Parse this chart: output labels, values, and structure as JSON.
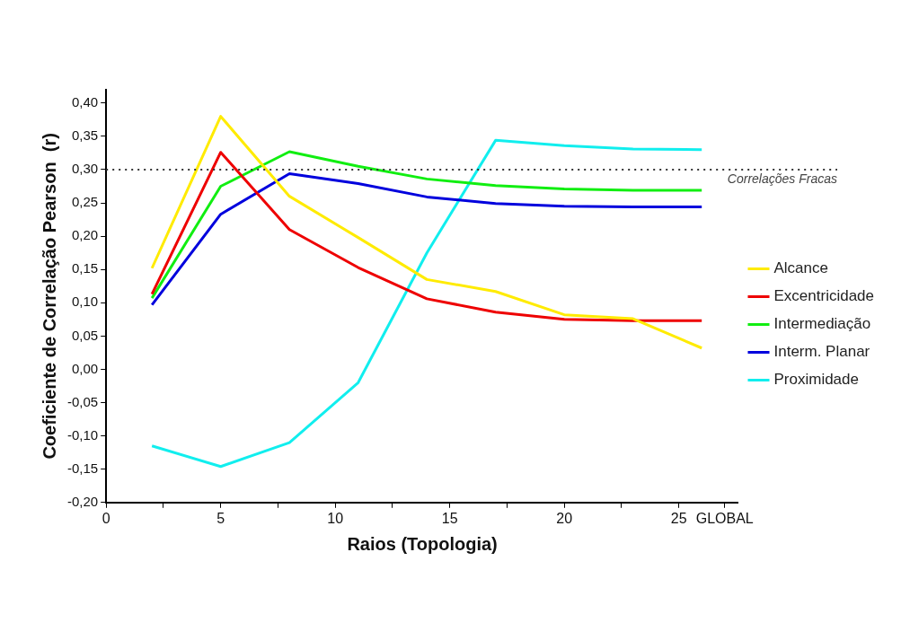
{
  "chart_data": {
    "type": "line",
    "xlabel": "Raios (Topologia)",
    "ylabel": "Coeficiente de Correlação Pearson  (r)",
    "xlim": [
      0,
      27.6
    ],
    "xticks": [
      0,
      {
        "value": 2.5,
        "label": null
      },
      5,
      {
        "value": 7.5,
        "label": null
      },
      10,
      {
        "value": 12.5,
        "label": null
      },
      15,
      {
        "value": 17.5,
        "label": null
      },
      20,
      {
        "value": 22.5,
        "label": null
      },
      25,
      {
        "value": 27,
        "label": "GLOBAL"
      }
    ],
    "ylim": [
      -0.2,
      0.42
    ],
    "yticks": [
      {
        "value": -0.2,
        "label": "-0,20"
      },
      {
        "value": -0.15,
        "label": "-0,15"
      },
      {
        "value": -0.1,
        "label": "-0,10"
      },
      {
        "value": -0.05,
        "label": "-0,05"
      },
      {
        "value": 0,
        "label": "0,00"
      },
      {
        "value": 0.05,
        "label": "0,05"
      },
      {
        "value": 0.1,
        "label": "0,10"
      },
      {
        "value": 0.15,
        "label": "0,15"
      },
      {
        "value": 0.2,
        "label": "0,20"
      },
      {
        "value": 0.25,
        "label": "0,25"
      },
      {
        "value": 0.3,
        "label": "0,30"
      },
      {
        "value": 0.35,
        "label": "0,35"
      },
      {
        "value": 0.4,
        "label": "0,40"
      }
    ],
    "x": [
      2,
      5,
      8,
      11,
      14,
      17,
      20,
      23,
      26
    ],
    "series": [
      {
        "name": "Alcance",
        "color": "#ffeb00",
        "values": [
          0.152,
          0.38,
          0.26,
          0.198,
          0.135,
          0.117,
          0.082,
          0.076,
          0.032
        ]
      },
      {
        "name": "Excentricidade",
        "color": "#ee0000",
        "values": [
          0.113,
          0.326,
          0.21,
          0.153,
          0.106,
          0.086,
          0.075,
          0.073,
          0.073
        ]
      },
      {
        "name": "Intermediação",
        "color": "#11ee11",
        "values": [
          0.107,
          0.275,
          0.327,
          0.305,
          0.286,
          0.276,
          0.271,
          0.269,
          0.269
        ]
      },
      {
        "name": "Interm. Planar",
        "color": "#0000dd",
        "values": [
          0.097,
          0.233,
          0.294,
          0.279,
          0.259,
          0.249,
          0.245,
          0.244,
          0.244
        ]
      },
      {
        "name": "Proximidade",
        "color": "#11eeee",
        "values": [
          -0.115,
          -0.146,
          -0.11,
          -0.02,
          0.175,
          0.344,
          0.336,
          0.331,
          0.33
        ]
      }
    ],
    "ref_lines": [
      {
        "axis": "y",
        "value": 0.3,
        "label": "Correlações Fracas",
        "color": "#333333",
        "line_style": "dotted"
      }
    ],
    "legend": "right",
    "grid": false,
    "marker": "none",
    "line_style": "solid"
  }
}
